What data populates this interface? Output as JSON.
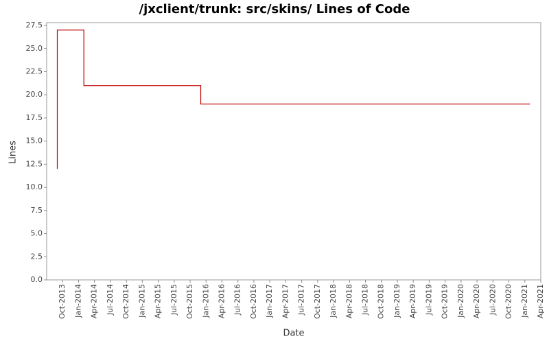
{
  "chart_data": {
    "type": "line",
    "step": "post",
    "title": "/jxclient/trunk: src/skins/ Lines of Code",
    "x_label": "Date",
    "y_label": "Lines",
    "x": [
      "2013-09",
      "2013-09",
      "2014-02",
      "2015-12",
      "2021-02"
    ],
    "series": [
      {
        "name": "Lines",
        "color": "#c00000",
        "values": [
          12,
          27,
          21,
          19,
          19
        ]
      }
    ],
    "xlim": [
      "2013-07",
      "2021-04"
    ],
    "xticks": [
      {
        "value": "2013-10",
        "label": "Oct-2013"
      },
      {
        "value": "2014-01",
        "label": "Jan-2014"
      },
      {
        "value": "2014-04",
        "label": "Apr-2014"
      },
      {
        "value": "2014-07",
        "label": "Jul-2014"
      },
      {
        "value": "2014-10",
        "label": "Oct-2014"
      },
      {
        "value": "2015-01",
        "label": "Jan-2015"
      },
      {
        "value": "2015-04",
        "label": "Apr-2015"
      },
      {
        "value": "2015-07",
        "label": "Jul-2015"
      },
      {
        "value": "2015-10",
        "label": "Oct-2015"
      },
      {
        "value": "2016-01",
        "label": "Jan-2016"
      },
      {
        "value": "2016-04",
        "label": "Apr-2016"
      },
      {
        "value": "2016-07",
        "label": "Jul-2016"
      },
      {
        "value": "2016-10",
        "label": "Oct-2016"
      },
      {
        "value": "2017-01",
        "label": "Jan-2017"
      },
      {
        "value": "2017-04",
        "label": "Apr-2017"
      },
      {
        "value": "2017-07",
        "label": "Jul-2017"
      },
      {
        "value": "2017-10",
        "label": "Oct-2017"
      },
      {
        "value": "2018-01",
        "label": "Jan-2018"
      },
      {
        "value": "2018-04",
        "label": "Apr-2018"
      },
      {
        "value": "2018-07",
        "label": "Jul-2018"
      },
      {
        "value": "2018-10",
        "label": "Oct-2018"
      },
      {
        "value": "2019-01",
        "label": "Jan-2019"
      },
      {
        "value": "2019-04",
        "label": "Apr-2019"
      },
      {
        "value": "2019-07",
        "label": "Jul-2019"
      },
      {
        "value": "2019-10",
        "label": "Oct-2019"
      },
      {
        "value": "2020-01",
        "label": "Jan-2020"
      },
      {
        "value": "2020-04",
        "label": "Apr-2020"
      },
      {
        "value": "2020-07",
        "label": "Jul-2020"
      },
      {
        "value": "2020-10",
        "label": "Oct-2020"
      },
      {
        "value": "2021-01",
        "label": "Jan-2021"
      },
      {
        "value": "2021-04",
        "label": "Apr-2021"
      }
    ],
    "ylim": [
      0,
      27.8
    ],
    "yticks": [
      {
        "value": 0,
        "label": "0.0"
      },
      2.5,
      {
        "value": 5,
        "label": "5.0"
      },
      7.5,
      {
        "value": 10,
        "label": "10.0"
      },
      12.5,
      {
        "value": 15,
        "label": "15.0"
      },
      17.5,
      {
        "value": 20,
        "label": "20.0"
      },
      22.5,
      {
        "value": 25,
        "label": "25.0"
      },
      27.5
    ]
  }
}
